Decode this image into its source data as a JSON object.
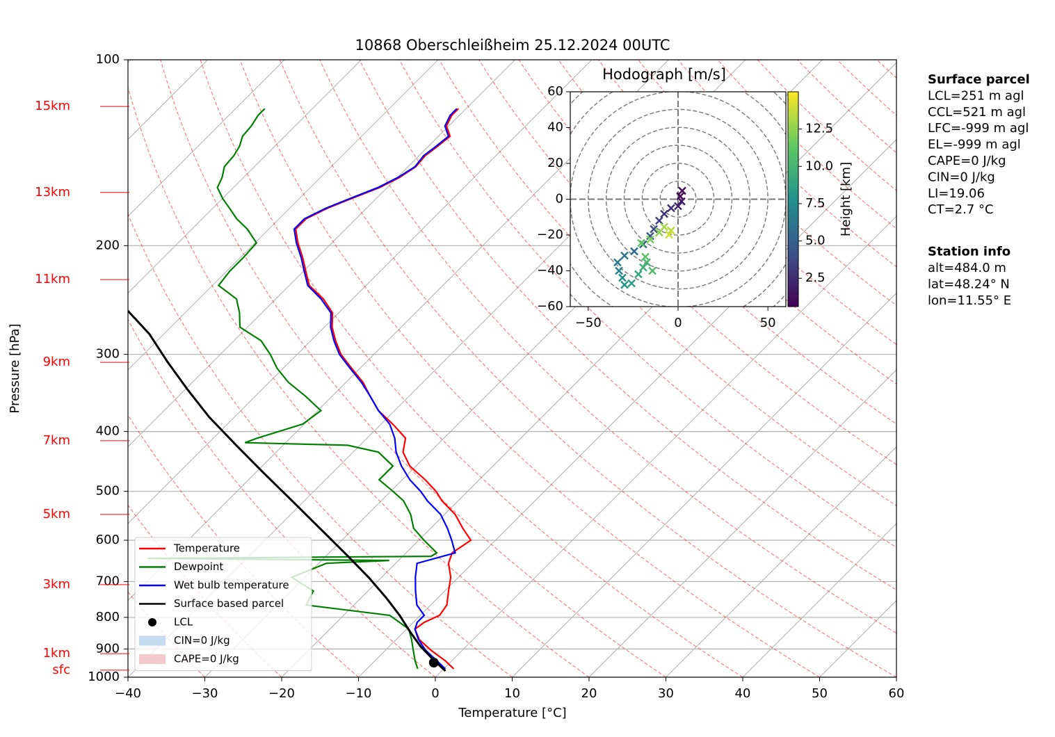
{
  "chart_data": [
    {
      "type": "skewt",
      "title": "10868 Oberschleißheim 25.12.2024 00UTC",
      "xlabel": "Temperature [°C]",
      "ylabel": "Pressure [hPa]",
      "xlim": [
        -40,
        60
      ],
      "ylim": [
        1000,
        100
      ],
      "log_y": true,
      "grid": true,
      "xticks": [
        {
          "value": -40,
          "label": "−40"
        },
        {
          "value": -30,
          "label": "−30"
        },
        {
          "value": -20,
          "label": "−20"
        },
        {
          "value": -10,
          "label": "−10"
        },
        0,
        10,
        20,
        30,
        40,
        50,
        60
      ],
      "yticks": [
        100,
        200,
        300,
        400,
        500,
        600,
        700,
        800,
        900,
        1000
      ],
      "height_labels": [
        {
          "value": 119,
          "label": "15km"
        },
        {
          "value": 164,
          "label": "13km"
        },
        {
          "value": 227,
          "label": "11km"
        },
        {
          "value": 309,
          "label": "9km"
        },
        {
          "value": 414,
          "label": "7km"
        },
        {
          "value": 545,
          "label": "5km"
        },
        {
          "value": 708,
          "label": "3km"
        },
        {
          "value": 916,
          "label": "1km"
        },
        {
          "value": 974,
          "label": "sfc"
        }
      ],
      "series": [
        {
          "name": "Temperature",
          "color": "#ff0000",
          "x": [
            1.3,
            -0.9,
            -4.1,
            -7.0,
            -8.9,
            -8.6,
            -7.5,
            -7.9,
            -9.5,
            -11.0,
            -13.1,
            -14.0,
            -13.2,
            -15.8,
            -18.6,
            -22.1,
            -24.1,
            -27.0,
            -30.8,
            -33.5,
            -35.0,
            -38.5,
            -42.1,
            -45.0,
            -47.8,
            -51.1,
            -54.3,
            -56.8,
            -59.0,
            -60.8,
            -63.8,
            -67.4,
            -69.7,
            -71.9,
            -74.4,
            -76.5,
            -76.5,
            -75.1,
            -73.3,
            -71.0,
            -69.7,
            -69.0,
            -69.2,
            -68.8,
            -68.5,
            -70.3,
            -71.0,
            -71.0
          ],
          "y": [
            969,
            940,
            904,
            869,
            836,
            815,
            794,
            764,
            725,
            689,
            654,
            629,
            600,
            574,
            545,
            518,
            500,
            479,
            455,
            432,
            410,
            389,
            370,
            351,
            333,
            316,
            300,
            285,
            271,
            257,
            244,
            232,
            220,
            209,
            198,
            188,
            181,
            174,
            168,
            161,
            155,
            149,
            143,
            138,
            133,
            128,
            123,
            120
          ]
        },
        {
          "name": "Dewpoint",
          "color": "#008000",
          "x": [
            -3.4,
            -4.8,
            -6.4,
            -8.0,
            -9.7,
            -11.8,
            -14.0,
            -26.2,
            -27.1,
            -31.7,
            -29.0,
            -21.2,
            -52.9,
            -16.3,
            -16.0,
            -19.3,
            -22.2,
            -24.4,
            -27.1,
            -29.7,
            -33.0,
            -33.0,
            -36.7,
            -41.6,
            -55.3,
            -54.3,
            -50.2,
            -49.6,
            -53.4,
            -57.5,
            -60.8,
            -63.5,
            -66.5,
            -71.0,
            -72.9,
            -75.1,
            -79.2,
            -79.6,
            -79.6,
            -79.8,
            -82.8,
            -85.5,
            -87.8,
            -89.9,
            -92.1,
            -92.8,
            -93.9,
            -94.1,
            -94.6,
            -95.5,
            -95.7,
            -96.2,
            -96.2
          ],
          "y": [
            969,
            940,
            904,
            869,
            836,
            815,
            794,
            764,
            725,
            689,
            654,
            647,
            642,
            637,
            629,
            600,
            574,
            545,
            518,
            500,
            479,
            455,
            432,
            421,
            417,
            410,
            389,
            370,
            351,
            333,
            316,
            300,
            285,
            271,
            257,
            244,
            232,
            220,
            209,
            198,
            188,
            181,
            174,
            168,
            161,
            155,
            149,
            143,
            138,
            133,
            128,
            123,
            120
          ]
        },
        {
          "name": "Wet bulb temperature",
          "color": "#0000ff",
          "x": [
            0.2,
            -2.0,
            -4.8,
            -7.1,
            -8.9,
            -9.5,
            -9.5,
            -11.8,
            -13.8,
            -15.6,
            -17.2,
            -13.6,
            -15.7,
            -17.8,
            -20.5,
            -24.0,
            -26.1,
            -29.0,
            -31.9,
            -34.4,
            -36.4,
            -38.9,
            -42.1,
            -45.0,
            -48.0,
            -51.3,
            -54.5,
            -57.0,
            -59.2,
            -61.0,
            -64.1,
            -67.6,
            -69.9,
            -72.1,
            -74.6,
            -76.7,
            -76.7,
            -75.3,
            -73.5,
            -71.2,
            -69.9,
            -69.1,
            -69.4,
            -69.0,
            -68.7,
            -70.5,
            -71.2,
            -71.2
          ],
          "y": [
            969,
            940,
            904,
            869,
            836,
            815,
            794,
            764,
            725,
            689,
            654,
            629,
            600,
            574,
            545,
            518,
            500,
            479,
            455,
            432,
            410,
            389,
            370,
            351,
            333,
            316,
            300,
            285,
            271,
            257,
            244,
            232,
            220,
            209,
            198,
            188,
            181,
            174,
            168,
            161,
            155,
            149,
            143,
            138,
            133,
            128,
            123,
            120
          ]
        },
        {
          "name": "Surface based parcel",
          "color": "#000000",
          "x": [
            0.5,
            -2.3,
            -5.9,
            -9.0,
            -12.7,
            -16.7,
            -21.7,
            -27.1,
            -34.4,
            -41.6,
            -48.9,
            -56.1,
            -63.3,
            -69.7,
            -76.0,
            -81.9,
            -87.7
          ],
          "y": [
            977,
            940,
            892,
            847,
            794,
            744,
            689,
            637,
            574,
            518,
            467,
            421,
            379,
            342,
            308,
            278,
            255
          ]
        }
      ],
      "points": [
        {
          "name": "LCL",
          "color": "#000000",
          "x": -2.1,
          "y": 947
        }
      ],
      "areas": [
        {
          "name": "CIN=0 J/kg",
          "color": "#c6dbef"
        },
        {
          "name": "CAPE=0 J/kg",
          "color": "#f5c9cc"
        }
      ],
      "legend": "lower left",
      "text_boxes": [
        {
          "title": "Surface parcel",
          "lines": [
            "LCL=251 m agl",
            "CCL=521 m agl",
            "LFC=-999 m agl",
            "EL=-999 m agl",
            "CAPE=0 J/kg",
            "CIN=0 J/kg",
            "LI=19.06",
            "CT=2.7 °C"
          ]
        },
        {
          "title": "Station info",
          "lines": [
            "alt=484.0 m",
            "lat=48.24° N",
            "lon=11.55° E"
          ]
        }
      ]
    },
    {
      "type": "hodograph",
      "title": "Hodograph [m/s]",
      "xlim": [
        -60,
        60
      ],
      "ylim": [
        -60,
        60
      ],
      "grid": true,
      "xticks": [
        {
          "value": -50,
          "label": "−50"
        },
        0,
        50
      ],
      "yticks": [
        {
          "value": -60,
          "label": "−60"
        },
        {
          "value": -40,
          "label": "−40"
        },
        {
          "value": -20,
          "label": "−20"
        },
        0,
        20,
        40,
        60
      ],
      "colormap": "viridis",
      "marker": "x",
      "colorbar": {
        "label": "Height [km]",
        "lim": [
          0.6,
          15
        ],
        "ticks": [
          2.5,
          {
            "value": 5,
            "label": "5.0"
          },
          7.5,
          {
            "value": 10,
            "label": "10.0"
          },
          12.5
        ]
      },
      "u": [
        1.2,
        2.3,
        1.9,
        0,
        -3.9,
        -7.7,
        -10.5,
        -13.5,
        -15.5,
        -19.4,
        -24.4,
        -29.8,
        -33.7,
        -32.9,
        -31.0,
        -29.8,
        -25.9,
        -22.1,
        -19.4,
        -17.4,
        -14.3,
        -18.2,
        -20.5,
        -15.5,
        -10.5,
        -7.7,
        -3.9,
        -5.0
      ],
      "v": [
        1.6,
        4.7,
        -1.2,
        -3.9,
        -5.0,
        -8.2,
        -12.0,
        -16.7,
        -20.6,
        -25.2,
        -29.1,
        -31.5,
        -35.3,
        -40.0,
        -43.9,
        -47.8,
        -47.0,
        -41.9,
        -38.1,
        -35.3,
        -40.0,
        -32.2,
        -24.5,
        -22.5,
        -18.6,
        -15.5,
        -17.5,
        -19.8
      ],
      "heights": [
        0.5,
        1,
        1.5,
        2,
        2.5,
        3,
        3.5,
        4,
        4.5,
        5,
        5.5,
        6,
        6.5,
        7,
        7.5,
        8,
        8.5,
        9,
        9.5,
        10,
        10.5,
        11,
        11.5,
        12,
        12.5,
        13,
        13.5,
        14
      ]
    }
  ]
}
